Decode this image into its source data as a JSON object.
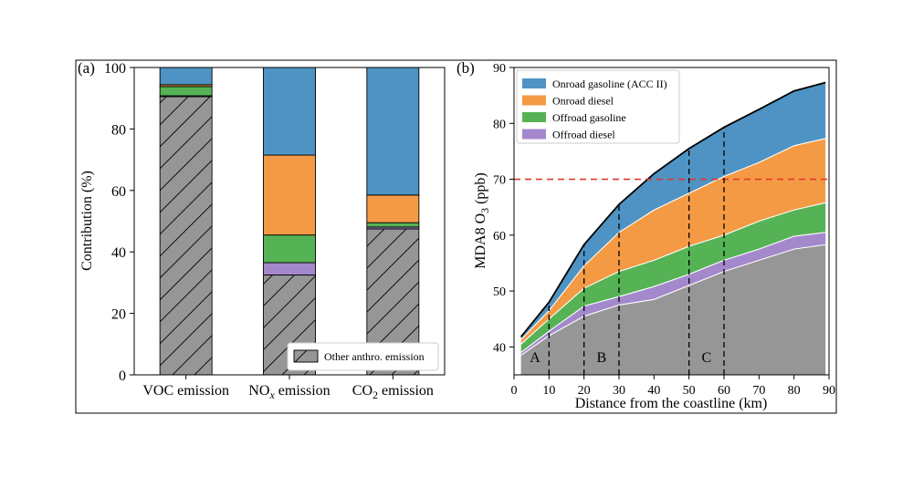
{
  "panel_a": {
    "label": "(a)",
    "ylabel": "Contribution (%)",
    "legend": "Other anthro. emission",
    "chart_data": {
      "type": "bar",
      "stacked": true,
      "ylim": [
        0,
        100
      ],
      "yticks": [
        0,
        20,
        40,
        60,
        80,
        100
      ],
      "categories": [
        {
          "main": "VOC emission",
          "pre": "",
          "sub": "",
          "post": ""
        },
        {
          "main": "",
          "pre": "NO",
          "sub": "x",
          "post": " emission"
        },
        {
          "main": "",
          "pre": "CO",
          "sub": "2",
          "post": " emission"
        }
      ],
      "series": [
        {
          "name": "Other anthro. emission",
          "color": "#969696",
          "hatch": true,
          "values": [
            90.5,
            32.5,
            47.5
          ]
        },
        {
          "name": "Offroad diesel",
          "color": "#a488cc",
          "values": [
            0.3,
            4.0,
            0.6
          ]
        },
        {
          "name": "Offroad gasoline",
          "color": "#55b355",
          "values": [
            3.0,
            9.0,
            1.4
          ]
        },
        {
          "name": "Onroad diesel",
          "color": "#f59a44",
          "values": [
            0.6,
            26.0,
            9.0
          ]
        },
        {
          "name": "Onroad gasoline",
          "color": "#4e93c3",
          "values": [
            5.6,
            28.5,
            41.5
          ]
        }
      ]
    }
  },
  "panel_b": {
    "label": "(b)",
    "ylabel_pre": "MDA8 O",
    "ylabel_sub": "3",
    "ylabel_post": " (ppb)",
    "xlabel": "Distance from the coastline (km)",
    "region_labels": [
      {
        "text": "A",
        "x": 6
      },
      {
        "text": "B",
        "x": 25
      },
      {
        "text": "C",
        "x": 55
      }
    ],
    "legend": [
      {
        "label": "Onroad gasoline (ACC II)",
        "color": "#4e93c3"
      },
      {
        "label": "Onroad diesel",
        "color": "#f59a44"
      },
      {
        "label": "Offroad gasoline",
        "color": "#55b355"
      },
      {
        "label": "Offroad diesel",
        "color": "#a488cc"
      }
    ],
    "chart_data": {
      "type": "area",
      "stacked": true,
      "xlim": [
        0,
        90
      ],
      "ylim": [
        35,
        90
      ],
      "xticks": [
        0,
        10,
        20,
        30,
        40,
        50,
        60,
        70,
        80,
        90
      ],
      "yticks": [
        40,
        50,
        60,
        70,
        80,
        90
      ],
      "x": [
        2,
        10,
        20,
        30,
        40,
        50,
        60,
        70,
        80,
        89
      ],
      "series": [
        {
          "name": "Other anthro. emission",
          "color": "#969696",
          "values": [
            38.5,
            42.0,
            45.5,
            47.5,
            48.5,
            51.0,
            53.5,
            55.5,
            57.5,
            58.3
          ]
        },
        {
          "name": "Offroad diesel",
          "color": "#a488cc",
          "values": [
            39.0,
            42.8,
            47.3,
            49.0,
            50.8,
            53.0,
            55.5,
            57.5,
            59.8,
            60.5
          ]
        },
        {
          "name": "Offroad gasoline",
          "color": "#55b355",
          "values": [
            40.5,
            45.0,
            50.5,
            53.5,
            55.5,
            58.0,
            60.0,
            62.5,
            64.5,
            65.8
          ]
        },
        {
          "name": "Onroad diesel",
          "color": "#f59a44",
          "values": [
            41.3,
            46.5,
            54.5,
            60.5,
            64.5,
            67.5,
            70.5,
            73.0,
            76.0,
            77.3
          ]
        },
        {
          "name": "Onroad gasoline (ACC II)",
          "color": "#4e93c3",
          "values": [
            41.8,
            48.0,
            58.3,
            65.5,
            71.0,
            75.5,
            79.3,
            82.5,
            85.8,
            87.3
          ]
        }
      ],
      "threshold": 70,
      "vlines": [
        10,
        20,
        30,
        50,
        60
      ]
    }
  }
}
